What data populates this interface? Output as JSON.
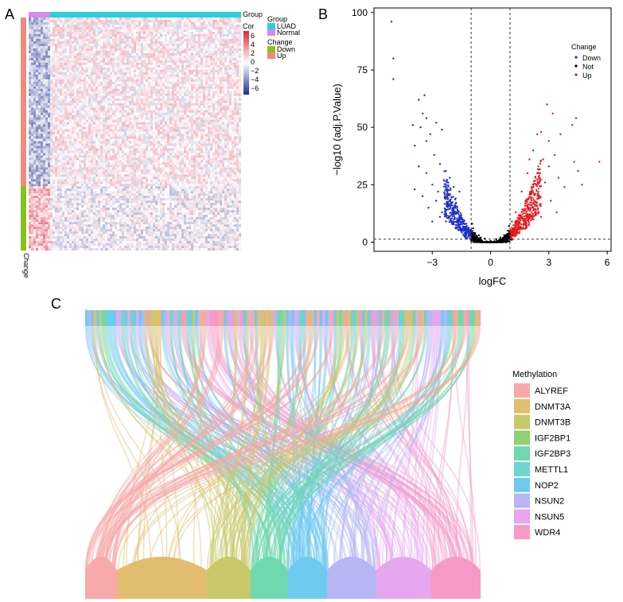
{
  "panels": {
    "A": "A",
    "B": "B",
    "C": "C"
  },
  "heatmap": {
    "group_bar_label": "Group",
    "change_bar_label": "Change",
    "legend_group_title": "Group",
    "legend_groups": [
      {
        "label": "LUAD",
        "color": "#2ad0dc"
      },
      {
        "label": "Normal",
        "color": "#d58aee"
      }
    ],
    "legend_cor_title": "Cor",
    "cor_ticks": [
      "6",
      "4",
      "2",
      "0",
      "−2",
      "−4",
      "−6"
    ],
    "legend_change_title": "Change",
    "legend_changes": [
      {
        "label": "Down",
        "color": "#86c21c"
      },
      {
        "label": "Up",
        "color": "#f08a80"
      }
    ],
    "colors": {
      "high": "#e0213a",
      "mid": "#ffffff",
      "low": "#1c2e8c"
    }
  },
  "chart_data": [
    {
      "type": "scatter",
      "panel": "B",
      "title": "",
      "xlabel": "logFC",
      "ylabel": "−log10 (adj.P.Value)",
      "xlim": [
        -6,
        6.2
      ],
      "ylim": [
        -4,
        102
      ],
      "xticks": [
        {
          "v": -3,
          "label": "−3"
        },
        {
          "v": 0,
          "label": "0"
        },
        {
          "v": 3,
          "label": "3"
        },
        {
          "v": 6,
          "label": "6"
        }
      ],
      "yticks": [
        {
          "v": 0,
          "label": "0"
        },
        {
          "v": 25,
          "label": "25"
        },
        {
          "v": 50,
          "label": "50"
        },
        {
          "v": 75,
          "label": "75"
        },
        {
          "v": 100,
          "label": "100"
        }
      ],
      "thresholds": {
        "logFC": [
          -1,
          1
        ],
        "neglog10p": 1.3
      },
      "legend_title": "Change",
      "series": [
        {
          "name": "Down",
          "color": "#1f2fc8",
          "points": [
            [
              -5.1,
              96
            ],
            [
              -5.0,
              80
            ],
            [
              -5.0,
              71
            ],
            [
              -3.7,
              62
            ],
            [
              -3.4,
              64
            ],
            [
              -3.5,
              56
            ],
            [
              -3.3,
              54
            ],
            [
              -4.0,
              51
            ],
            [
              -3.6,
              50
            ],
            [
              -3.1,
              47
            ],
            [
              -2.8,
              52
            ],
            [
              -2.5,
              49
            ],
            [
              -3.9,
              42
            ],
            [
              -3.3,
              44
            ],
            [
              -2.9,
              38
            ],
            [
              -3.7,
              33
            ],
            [
              -3.3,
              30
            ],
            [
              -2.6,
              34
            ],
            [
              -2.3,
              31
            ],
            [
              -3.9,
              23
            ],
            [
              -3.5,
              20
            ],
            [
              -3.0,
              25
            ],
            [
              -2.7,
              22
            ],
            [
              -2.4,
              27
            ],
            [
              -2.1,
              28
            ],
            [
              -1.9,
              24
            ],
            [
              -3.2,
              15
            ],
            [
              -2.8,
              18
            ],
            [
              -2.5,
              13
            ],
            [
              -2.2,
              16
            ],
            [
              -1.8,
              19
            ],
            [
              -1.6,
              22
            ],
            [
              -2.0,
              12
            ],
            [
              -1.7,
              14
            ],
            [
              -1.5,
              10
            ],
            [
              -1.3,
              8
            ],
            [
              -1.2,
              6
            ],
            [
              -1.1,
              4
            ],
            [
              -1.4,
              5
            ],
            [
              -1.6,
              7
            ],
            [
              -2.3,
              9
            ],
            [
              -1.9,
              8
            ],
            [
              -2.6,
              11
            ],
            [
              -3.0,
              9
            ],
            [
              -1.25,
              3
            ],
            [
              -1.15,
              2.5
            ]
          ]
        },
        {
          "name": "Not",
          "color": "#000000",
          "points": [
            [
              -0.9,
              6
            ],
            [
              -0.8,
              4
            ],
            [
              -0.6,
              3
            ],
            [
              -0.5,
              2
            ],
            [
              -0.3,
              1.5
            ],
            [
              0,
              0.5
            ],
            [
              0.3,
              1.2
            ],
            [
              0.5,
              2
            ],
            [
              0.7,
              3
            ],
            [
              0.9,
              5
            ],
            [
              -0.7,
              1
            ],
            [
              0.6,
              1
            ],
            [
              -0.95,
              8
            ],
            [
              0.95,
              7
            ],
            [
              -0.2,
              0.3
            ],
            [
              0.2,
              0.4
            ],
            [
              -0.85,
              2
            ],
            [
              0.85,
              2.5
            ]
          ]
        },
        {
          "name": "Up",
          "color": "#e8161c",
          "points": [
            [
              1.1,
              3
            ],
            [
              1.2,
              5
            ],
            [
              1.3,
              7
            ],
            [
              1.5,
              10
            ],
            [
              1.4,
              4
            ],
            [
              1.7,
              8
            ],
            [
              2.0,
              12
            ],
            [
              2.2,
              15
            ],
            [
              1.8,
              18
            ],
            [
              2.5,
              20
            ],
            [
              2.1,
              24
            ],
            [
              2.8,
              26
            ],
            [
              1.6,
              22
            ],
            [
              2.4,
              30
            ],
            [
              3.0,
              33
            ],
            [
              2.7,
              36
            ],
            [
              3.3,
              38
            ],
            [
              2.2,
              40
            ],
            [
              3.0,
              44
            ],
            [
              2.6,
              48
            ],
            [
              3.5,
              28
            ],
            [
              3.8,
              24
            ],
            [
              3.1,
              18
            ],
            [
              3.6,
              47
            ],
            [
              4.2,
              51
            ],
            [
              3.2,
              56
            ],
            [
              4.3,
              35
            ],
            [
              4.5,
              31
            ],
            [
              4.7,
              25
            ],
            [
              5.6,
              35
            ],
            [
              4.4,
              54
            ],
            [
              2.9,
              60
            ],
            [
              2.4,
              47
            ],
            [
              2.0,
              36
            ],
            [
              1.9,
              30
            ],
            [
              2.3,
              21
            ],
            [
              3.4,
              13
            ],
            [
              2.6,
              11
            ],
            [
              1.3,
              13
            ],
            [
              1.1,
              9
            ]
          ]
        }
      ]
    },
    {
      "type": "alluvial",
      "panel": "C",
      "legend_title": "Methylation",
      "categories": [
        {
          "name": "ALYREF",
          "color": "#f7a9a9",
          "weight": 40
        },
        {
          "name": "DNMT3A",
          "color": "#e3bd6f",
          "weight": 113
        },
        {
          "name": "DNMT3B",
          "color": "#c8c86a",
          "weight": 55
        },
        {
          "name": "IGF2BP1",
          "color": "#8fd174",
          "weight": 0
        },
        {
          "name": "IGF2BP3",
          "color": "#6fd8b0",
          "weight": 47
        },
        {
          "name": "METTL1",
          "color": "#6fd4d4",
          "weight": 0
        },
        {
          "name": "NOP2",
          "color": "#6fcaf0",
          "weight": 49
        },
        {
          "name": "NSUN2",
          "color": "#b6b6f5",
          "weight": 62
        },
        {
          "name": "NSUN5",
          "color": "#e7a6f0",
          "weight": 69
        },
        {
          "name": "WDR4",
          "color": "#f59ac6",
          "weight": 62
        }
      ]
    }
  ]
}
